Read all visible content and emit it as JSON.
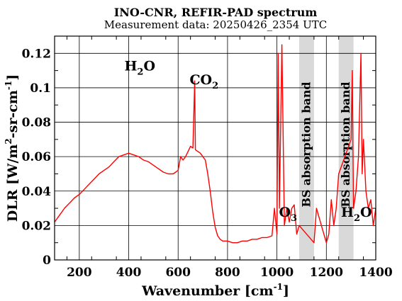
{
  "chart_data": {
    "type": "line",
    "title": "INO-CNR, REFIR-PAD spectrum",
    "subtitle": "Measurement data: 20250426_2354 UTC",
    "xlabel": {
      "main": "Wavenumber [cm",
      "sup": "-1",
      "end": "]"
    },
    "ylabel": {
      "main": "DLR [W/m",
      "sup1": "2",
      "mid": "-sr-cm",
      "sup2": "-1",
      "end": "]"
    },
    "xlim": [
      100,
      1400
    ],
    "ylim": [
      0,
      0.13
    ],
    "xticks": [
      200,
      400,
      600,
      800,
      1000,
      1200,
      1400
    ],
    "xtick_labels": [
      "200",
      "400",
      "600",
      "800",
      "1000",
      "1200",
      "1400"
    ],
    "yticks": [
      0,
      0.02,
      0.04,
      0.06,
      0.08,
      0.1,
      0.12
    ],
    "ytick_labels": [
      "0",
      "0.02",
      "0.04",
      "0.06",
      "0.08",
      "0.1",
      "0.12"
    ],
    "grid": true,
    "series": [
      {
        "color": "#ff0000",
        "x": [
          100,
          120,
          140,
          160,
          180,
          200,
          220,
          240,
          260,
          280,
          300,
          320,
          340,
          360,
          380,
          400,
          420,
          440,
          460,
          480,
          500,
          520,
          540,
          560,
          580,
          600,
          610,
          620,
          630,
          640,
          650,
          660,
          667,
          670,
          680,
          690,
          700,
          710,
          720,
          730,
          740,
          750,
          760,
          770,
          780,
          800,
          820,
          840,
          860,
          880,
          900,
          920,
          940,
          960,
          980,
          990,
          1000,
          1005,
          1010,
          1020,
          1030,
          1040,
          1050,
          1060,
          1070,
          1080,
          1090,
          1150,
          1160,
          1180,
          1200,
          1210,
          1220,
          1230,
          1240,
          1250,
          1300,
          1305,
          1310,
          1320,
          1330,
          1340,
          1345,
          1350,
          1360,
          1370,
          1380,
          1390,
          1400
        ],
        "y": [
          0.022,
          0.026,
          0.03,
          0.033,
          0.036,
          0.038,
          0.041,
          0.044,
          0.047,
          0.05,
          0.052,
          0.054,
          0.057,
          0.06,
          0.061,
          0.062,
          0.061,
          0.06,
          0.058,
          0.057,
          0.055,
          0.053,
          0.051,
          0.05,
          0.05,
          0.052,
          0.06,
          0.058,
          0.06,
          0.063,
          0.066,
          0.065,
          0.104,
          0.064,
          0.063,
          0.062,
          0.06,
          0.058,
          0.05,
          0.04,
          0.028,
          0.019,
          0.014,
          0.012,
          0.011,
          0.011,
          0.01,
          0.01,
          0.011,
          0.011,
          0.012,
          0.012,
          0.013,
          0.013,
          0.014,
          0.03,
          0.015,
          0.12,
          0.03,
          0.125,
          0.02,
          0.03,
          0.022,
          0.03,
          0.032,
          0.015,
          0.02,
          0.01,
          0.03,
          0.02,
          0.01,
          0.015,
          0.035,
          0.02,
          0.03,
          0.05,
          0.07,
          0.11,
          0.03,
          0.04,
          0.06,
          0.12,
          0.05,
          0.07,
          0.04,
          0.03,
          0.035,
          0.02,
          0.03
        ]
      }
    ],
    "shaded_bands": [
      {
        "x_range": [
          1090,
          1150
        ],
        "label": "BS absorption band",
        "color": "#d9d9d9"
      },
      {
        "x_range": [
          1250,
          1310
        ],
        "label": "BS absorption band",
        "color": "#d9d9d9"
      }
    ],
    "annotations": [
      {
        "main": "H",
        "sub": "2",
        "end": "O",
        "x": 445,
        "y": 0.11
      },
      {
        "main": "CO",
        "sub": "2",
        "end": "",
        "x": 705,
        "y": 0.102
      },
      {
        "main": "O",
        "sub": "3",
        "end": "",
        "x": 1045,
        "y": 0.025
      },
      {
        "main": "H",
        "sub": "2",
        "end": "O",
        "x": 1322,
        "y": 0.025
      }
    ]
  }
}
